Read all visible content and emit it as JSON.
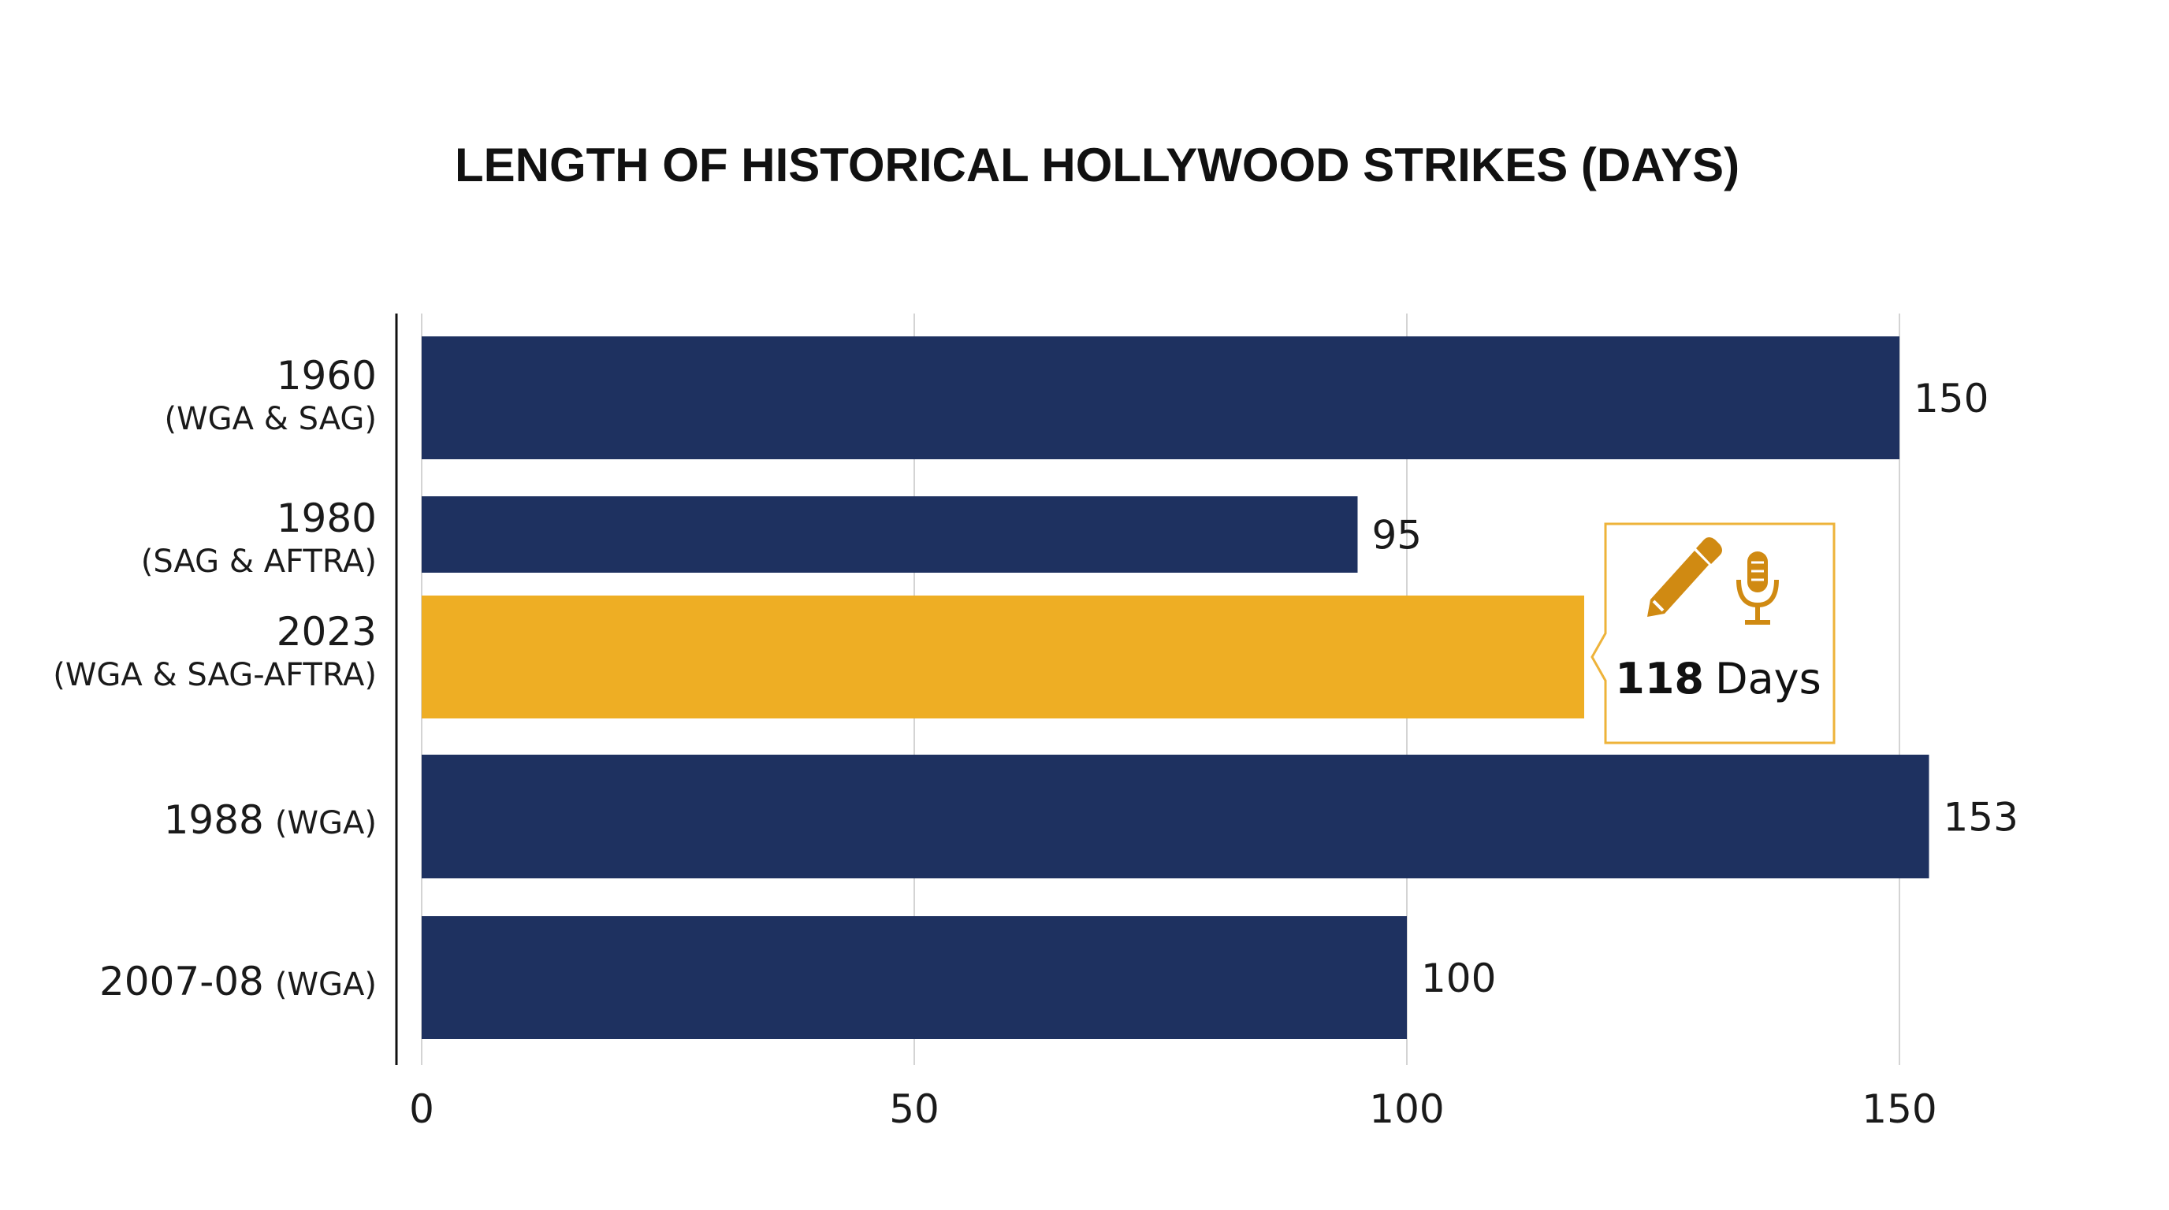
{
  "colors": {
    "bar": "#1e3160",
    "highlight": "#eeae24",
    "callout_border": "#eeb33a",
    "callout_icon": "#d08a12",
    "grid": "#d4d4d4",
    "axis": "#111111"
  },
  "chart_data": {
    "type": "bar",
    "orientation": "horizontal",
    "title": "LENGTH OF HISTORICAL HOLLYWOOD STRIKES (DAYS)",
    "xlabel": "",
    "ylabel": "",
    "xlim": [
      0,
      150
    ],
    "xticks": [
      "0",
      "50",
      "100",
      "150"
    ],
    "grid": true,
    "categories": [
      {
        "main": "1960",
        "sub": "(WGA & SAG)",
        "value": 150,
        "value_label": "150",
        "highlight": false
      },
      {
        "main": "1980",
        "sub": "(SAG & AFTRA)",
        "value": 95,
        "value_label": "95",
        "highlight": false
      },
      {
        "main": "2023",
        "sub": "(WGA & SAG-AFTRA)",
        "value": 118,
        "value_label": "",
        "highlight": true
      },
      {
        "main": "1988",
        "sub": "(WGA)",
        "value": 153,
        "value_label": "153",
        "highlight": false
      },
      {
        "main": "2007-08",
        "sub": "(WGA)",
        "value": 100,
        "value_label": "100",
        "highlight": false
      }
    ],
    "annotation": {
      "number": "118",
      "unit": "Days",
      "icons": [
        "pen-icon",
        "microphone-icon"
      ]
    }
  }
}
